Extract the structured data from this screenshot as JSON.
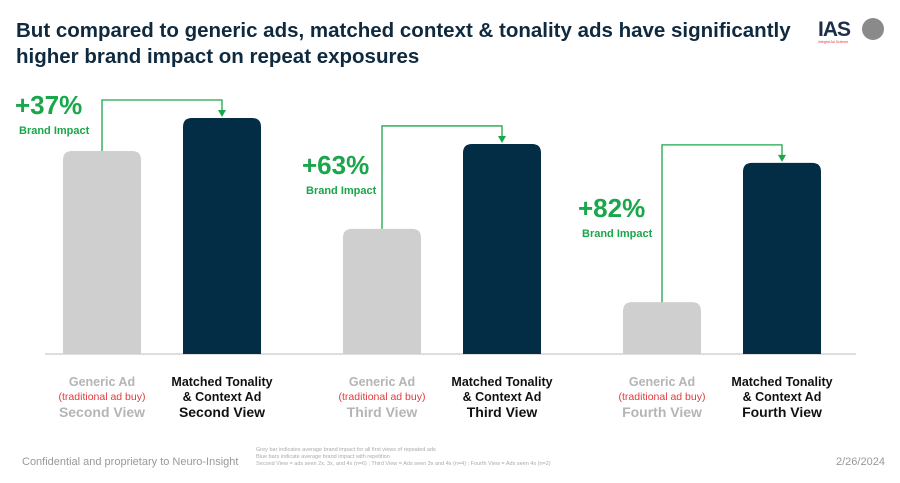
{
  "title": "But compared to generic ads, matched context & tonality ads have significantly higher brand impact on repeat exposures",
  "logos": {
    "ias": "IAS",
    "ias_sub": "Integral Ad Science"
  },
  "colors": {
    "generic": "#d0cfcf",
    "matched": "#022d45",
    "accent": "#1aa64a",
    "red": "#e03a3a"
  },
  "chart_data": {
    "type": "bar",
    "title": "But compared to generic ads, matched context & tonality ads have significantly higher brand impact on repeat exposures",
    "grid": false,
    "y_axis_shown": false,
    "value_note": "relative bar heights (no axis printed)",
    "groups": [
      {
        "view": "Second View",
        "generic": 86,
        "matched": 100,
        "lift": "+37%",
        "lift_label": "Brand Impact"
      },
      {
        "view": "Third View",
        "generic": 53,
        "matched": 89,
        "lift": "+63%",
        "lift_label": "Brand Impact"
      },
      {
        "view": "Fourth View",
        "generic": 22,
        "matched": 81,
        "lift": "+82%",
        "lift_label": "Brand Impact"
      }
    ],
    "labels": {
      "generic_line1": "Generic Ad",
      "generic_line2": "(traditional ad buy)",
      "matched_line1": "Matched Tonality",
      "matched_line2": "& Context Ad"
    }
  },
  "footer": {
    "confidential": "Confidential and proprietary to Neuro-Insight",
    "date": "2/26/2024",
    "notes": [
      "Grey bar indicates average brand impact for all first views of repeated ads",
      "Blue bars indicate average brand impact with repetition",
      "Second View = ads seen 2x, 3x, and 4x (n=6) ; Third View = Ads seen 3x and 4x (n=4) ; Fourth View = Ads seen 4x (n=2)"
    ]
  }
}
